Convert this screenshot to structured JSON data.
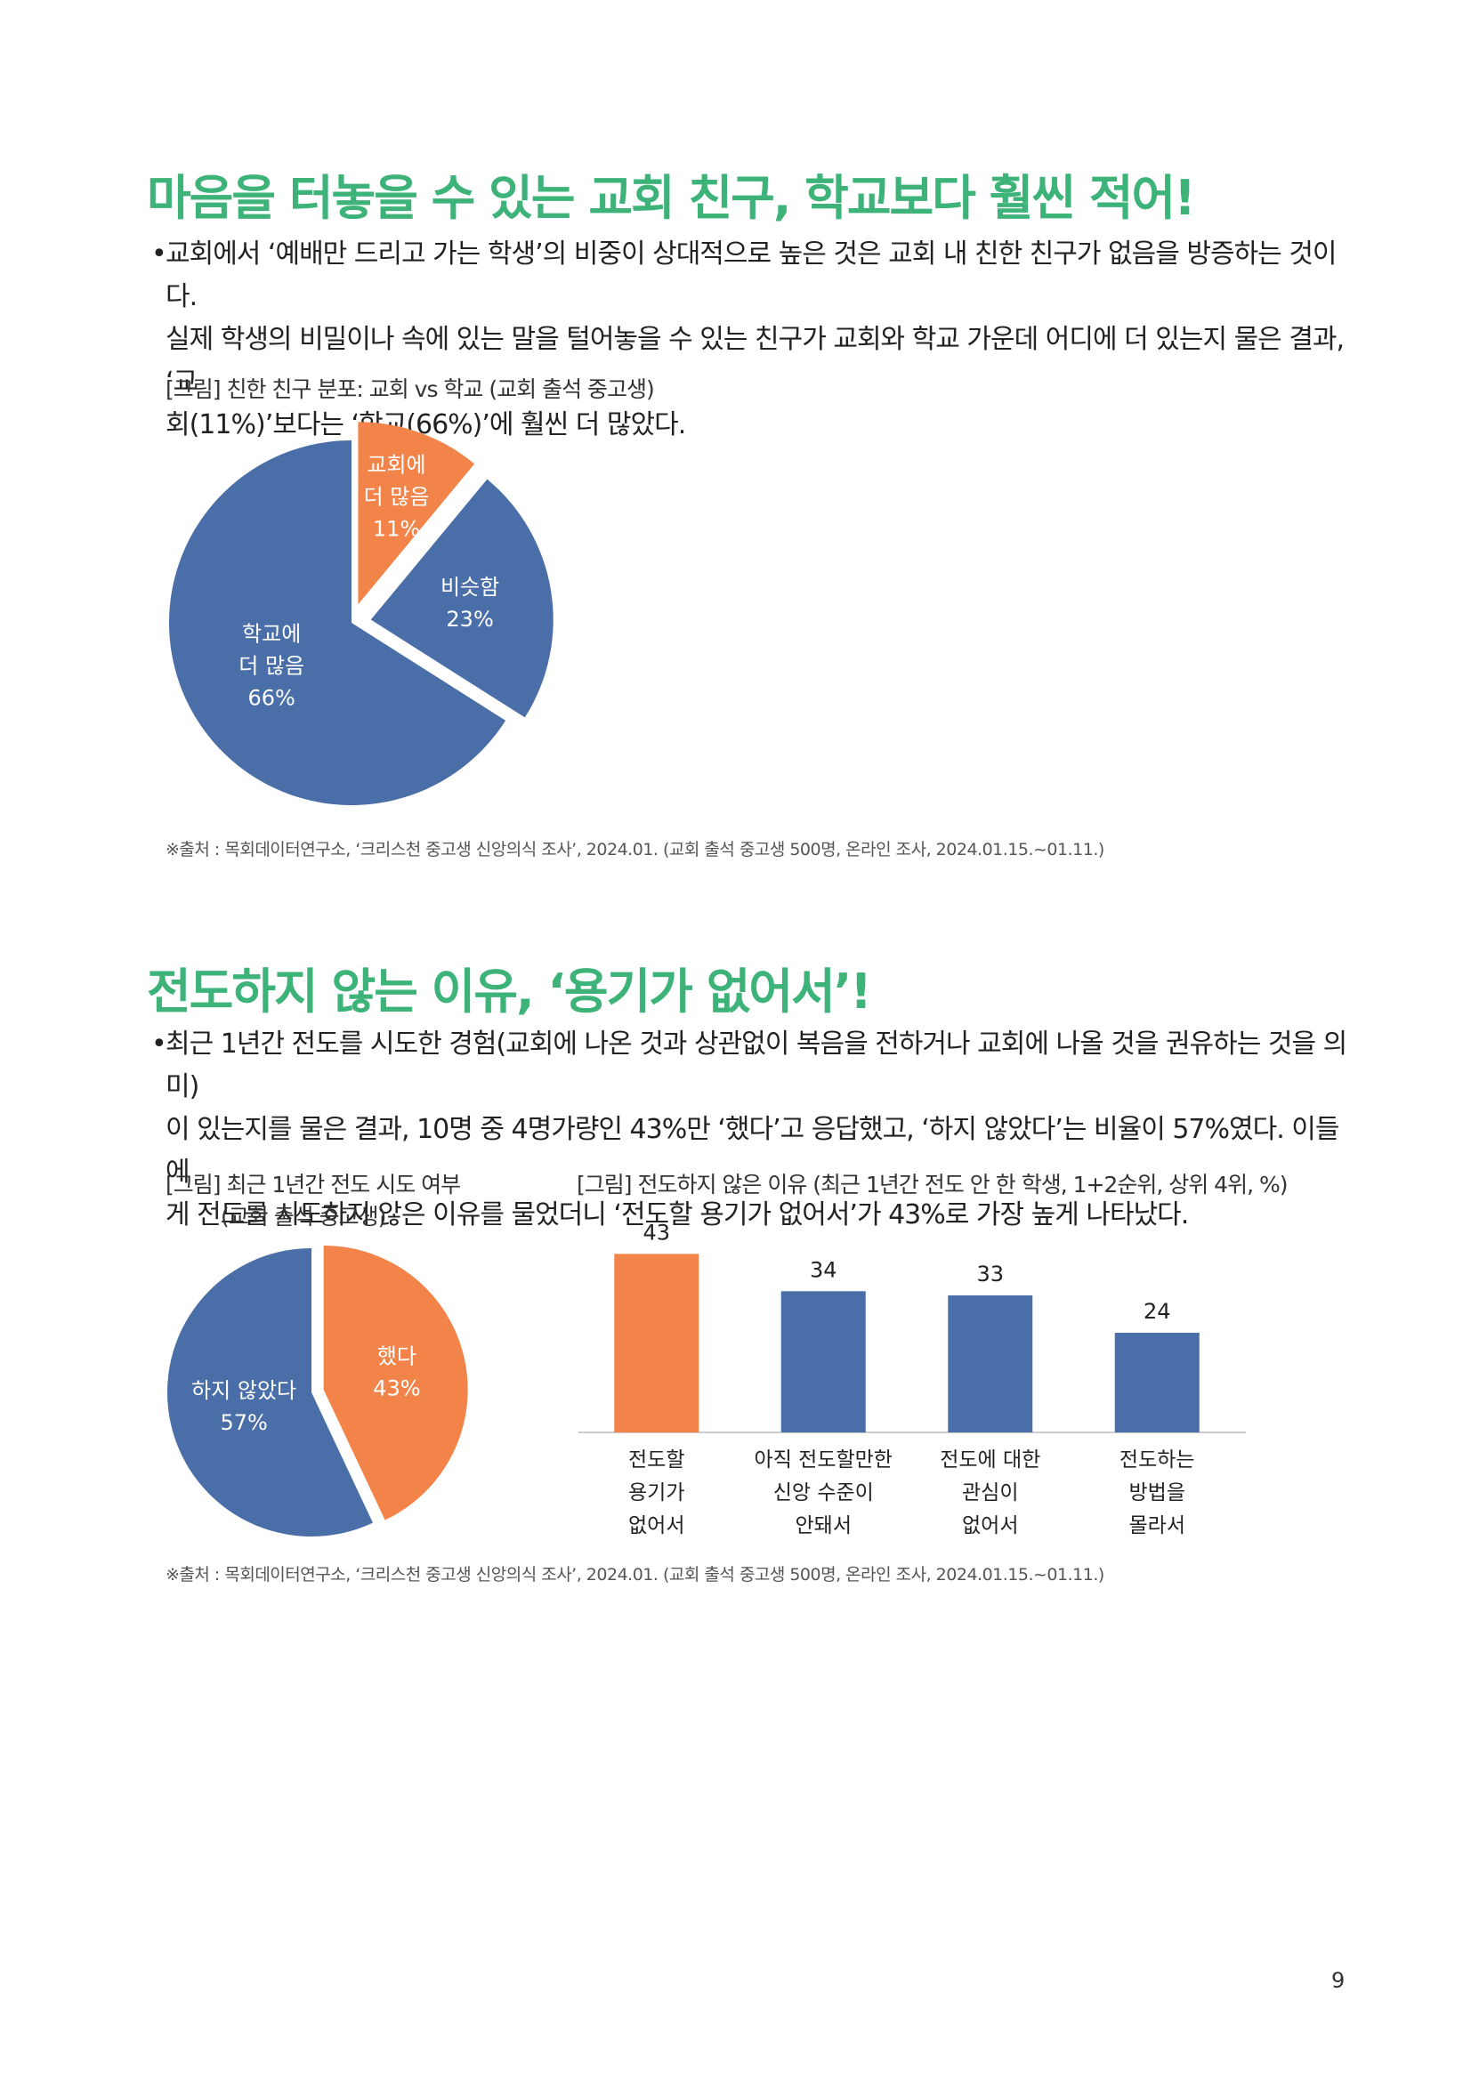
{
  "section1": {
    "title": "마음을 터놓을 수 있는 교회 친구, 학교보다 훨씬 적어!",
    "bullet_marker": "•",
    "bullet_lines": [
      "교회에서 ‘예배만 드리고 가는 학생’의 비중이 상대적으로 높은 것은 교회 내 친한 친구가 없음을 방증하는 것이다.",
      "실제 학생의 비밀이나 속에 있는 말을 털어놓을 수 있는 친구가 교회와 학교 가운데 어디에 더 있는지 물은 결과, ‘교",
      "회(11%)’보다는 ‘학교(66%)’에 훨씬 더 많았다."
    ],
    "figure_caption": "[그림] 친한 친구 분포: 교회 vs 학교 (교회 출석 중고생)",
    "source": "※출처 : 목회데이터연구소, ‘크리스천 중고생 신앙의식 조사’, 2024.01. (교회 출석 중고생 500명, 온라인 조사, 2024.01.15.~01.11.)"
  },
  "section2": {
    "title": "전도하지 않는 이유, ‘용기가 없어서’!",
    "bullet_marker": "•",
    "bullet_lines": [
      "최근 1년간 전도를 시도한 경험(교회에 나온 것과 상관없이 복음을 전하거나 교회에 나올 것을 권유하는 것을 의미)",
      "이 있는지를 물은 결과, 10명 중 4명가량인 43%만 ‘했다’고 응답했고, ‘하지 않았다’는 비율이 57%였다. 이들에",
      "게 전도를 시도하지 않은 이유를 물었더니 ‘전도할 용기가 없어서’가 43%로 가장 높게 나타났다."
    ],
    "pie_caption_lines": [
      "[그림] 최근 1년간 전도 시도 여부",
      "(교회 출석 중고생)"
    ],
    "bar_caption": "[그림] 전도하지 않은 이유 (최근 1년간 전도 안 한 학생, 1+2순위, 상위 4위, %)",
    "source": "※출처 : 목회데이터연구소, ‘크리스천 중고생 신앙의식 조사’, 2024.01. (교회 출석 중고생 500명, 온라인 조사, 2024.01.15.~01.11.)"
  },
  "page_number": "9",
  "colors": {
    "blue": "#4a6ea8",
    "orange": "#f2844a",
    "title_green": "#3db37a"
  },
  "chart_data": [
    {
      "type": "pie",
      "slices": [
        {
          "label_lines": [
            "교회에",
            "더 많음"
          ],
          "value": 11,
          "value_label": "11%",
          "color": "#f2844a",
          "exploded": true
        },
        {
          "label_lines": [
            "비슷함"
          ],
          "value": 23,
          "value_label": "23%",
          "color": "#4a6ea8",
          "exploded": true
        },
        {
          "label_lines": [
            "학교에",
            "더 많음"
          ],
          "value": 66,
          "value_label": "66%",
          "color": "#4a6ea8",
          "exploded": false
        }
      ]
    },
    {
      "type": "pie",
      "slices": [
        {
          "label_lines": [
            "했다"
          ],
          "value": 43,
          "value_label": "43%",
          "color": "#f2844a",
          "exploded": true
        },
        {
          "label_lines": [
            "하지 않았다"
          ],
          "value": 57,
          "value_label": "57%",
          "color": "#4a6ea8",
          "exploded": false
        }
      ]
    },
    {
      "type": "bar",
      "categories": [
        [
          "전도할",
          "용기가",
          "없어서"
        ],
        [
          "아직 전도할만한",
          "신앙 수준이",
          "안돼서"
        ],
        [
          "전도에 대한",
          "관심이",
          "없어서"
        ],
        [
          "전도하는",
          "방법을",
          "몰라서"
        ]
      ],
      "values": [
        43,
        34,
        33,
        24
      ],
      "value_labels": [
        "43",
        "34",
        "33",
        "24"
      ],
      "colors": [
        "#f2844a",
        "#4a6ea8",
        "#4a6ea8",
        "#4a6ea8"
      ],
      "ylim": [
        0,
        45
      ]
    }
  ]
}
